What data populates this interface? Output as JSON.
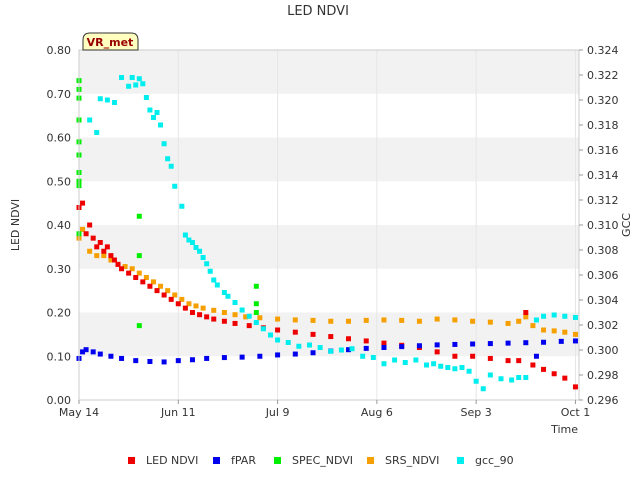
{
  "chart_data": {
    "type": "scatter",
    "title": "LED NDVI",
    "badge": "VR_met",
    "xlabel": "Time",
    "ylabel": "LED NDVI",
    "y2label": "GCC",
    "x_unit": "day of year 2023",
    "xlim": [
      134,
      275
    ],
    "ylim": [
      0,
      0.8
    ],
    "y2lim": [
      0.296,
      0.324
    ],
    "x_ticks": [
      {
        "label": "May 14",
        "day": 134
      },
      {
        "label": "Jun 11",
        "day": 162
      },
      {
        "label": "Jul 9",
        "day": 190
      },
      {
        "label": "Aug 6",
        "day": 218
      },
      {
        "label": "Sep 3",
        "day": 246
      },
      {
        "label": "Oct 1",
        "day": 274
      }
    ],
    "y_ticks": [
      "0.00",
      "0.10",
      "0.20",
      "0.30",
      "0.40",
      "0.50",
      "0.60",
      "0.70",
      "0.80"
    ],
    "y2_ticks": [
      "0.296",
      "0.298",
      "0.300",
      "0.302",
      "0.304",
      "0.306",
      "0.308",
      "0.310",
      "0.312",
      "0.314",
      "0.316",
      "0.318",
      "0.320",
      "0.322",
      "0.324"
    ],
    "series": [
      {
        "name": "LED NDVI",
        "color": "#ee0000",
        "axis": "left",
        "points": [
          [
            134,
            0.44
          ],
          [
            135,
            0.45
          ],
          [
            136,
            0.38
          ],
          [
            137,
            0.4
          ],
          [
            138,
            0.37
          ],
          [
            139,
            0.35
          ],
          [
            140,
            0.36
          ],
          [
            141,
            0.34
          ],
          [
            142,
            0.35
          ],
          [
            143,
            0.33
          ],
          [
            144,
            0.32
          ],
          [
            145,
            0.31
          ],
          [
            146,
            0.3
          ],
          [
            148,
            0.29
          ],
          [
            150,
            0.28
          ],
          [
            152,
            0.27
          ],
          [
            154,
            0.26
          ],
          [
            156,
            0.25
          ],
          [
            158,
            0.24
          ],
          [
            160,
            0.23
          ],
          [
            162,
            0.22
          ],
          [
            164,
            0.21
          ],
          [
            166,
            0.2
          ],
          [
            168,
            0.195
          ],
          [
            170,
            0.19
          ],
          [
            172,
            0.185
          ],
          [
            175,
            0.18
          ],
          [
            178,
            0.175
          ],
          [
            182,
            0.17
          ],
          [
            186,
            0.165
          ],
          [
            190,
            0.16
          ],
          [
            195,
            0.155
          ],
          [
            200,
            0.15
          ],
          [
            205,
            0.145
          ],
          [
            210,
            0.14
          ],
          [
            215,
            0.135
          ],
          [
            220,
            0.13
          ],
          [
            225,
            0.125
          ],
          [
            230,
            0.12
          ],
          [
            235,
            0.11
          ],
          [
            240,
            0.1
          ],
          [
            245,
            0.1
          ],
          [
            250,
            0.095
          ],
          [
            255,
            0.09
          ],
          [
            258,
            0.09
          ],
          [
            260,
            0.2
          ],
          [
            262,
            0.08
          ],
          [
            265,
            0.07
          ],
          [
            268,
            0.06
          ],
          [
            271,
            0.05
          ],
          [
            274,
            0.03
          ]
        ]
      },
      {
        "name": "fPAR",
        "color": "#0000ee",
        "axis": "left",
        "points": [
          [
            134,
            0.095
          ],
          [
            135,
            0.11
          ],
          [
            136,
            0.115
          ],
          [
            138,
            0.11
          ],
          [
            140,
            0.105
          ],
          [
            143,
            0.1
          ],
          [
            146,
            0.095
          ],
          [
            150,
            0.09
          ],
          [
            154,
            0.088
          ],
          [
            158,
            0.087
          ],
          [
            162,
            0.09
          ],
          [
            166,
            0.092
          ],
          [
            170,
            0.095
          ],
          [
            175,
            0.097
          ],
          [
            180,
            0.098
          ],
          [
            185,
            0.1
          ],
          [
            190,
            0.103
          ],
          [
            195,
            0.105
          ],
          [
            200,
            0.108
          ],
          [
            205,
            0.112
          ],
          [
            210,
            0.115
          ],
          [
            215,
            0.118
          ],
          [
            220,
            0.12
          ],
          [
            225,
            0.122
          ],
          [
            230,
            0.124
          ],
          [
            235,
            0.126
          ],
          [
            240,
            0.127
          ],
          [
            245,
            0.128
          ],
          [
            250,
            0.129
          ],
          [
            255,
            0.13
          ],
          [
            260,
            0.131
          ],
          [
            263,
            0.1
          ],
          [
            265,
            0.132
          ],
          [
            270,
            0.134
          ],
          [
            274,
            0.135
          ]
        ]
      },
      {
        "name": "SPEC_NDVI",
        "color": "#00ee00",
        "axis": "left",
        "points": [
          [
            134,
            0.73
          ],
          [
            134,
            0.71
          ],
          [
            134,
            0.69
          ],
          [
            134,
            0.64
          ],
          [
            134,
            0.59
          ],
          [
            134,
            0.56
          ],
          [
            134,
            0.52
          ],
          [
            134,
            0.5
          ],
          [
            134,
            0.49
          ],
          [
            134,
            0.38
          ],
          [
            151,
            0.42
          ],
          [
            151,
            0.33
          ],
          [
            151,
            0.17
          ],
          [
            184,
            0.26
          ],
          [
            184,
            0.22
          ],
          [
            184,
            0.2
          ]
        ]
      },
      {
        "name": "SRS_NDVI",
        "color": "#f5a000",
        "axis": "left",
        "points": [
          [
            134,
            0.37
          ],
          [
            135,
            0.39
          ],
          [
            137,
            0.34
          ],
          [
            139,
            0.33
          ],
          [
            141,
            0.33
          ],
          [
            143,
            0.32
          ],
          [
            145,
            0.31
          ],
          [
            147,
            0.305
          ],
          [
            149,
            0.3
          ],
          [
            151,
            0.29
          ],
          [
            153,
            0.28
          ],
          [
            155,
            0.27
          ],
          [
            157,
            0.26
          ],
          [
            159,
            0.25
          ],
          [
            161,
            0.24
          ],
          [
            163,
            0.23
          ],
          [
            165,
            0.22
          ],
          [
            167,
            0.215
          ],
          [
            169,
            0.21
          ],
          [
            172,
            0.205
          ],
          [
            175,
            0.2
          ],
          [
            178,
            0.195
          ],
          [
            181,
            0.19
          ],
          [
            185,
            0.188
          ],
          [
            190,
            0.185
          ],
          [
            195,
            0.183
          ],
          [
            200,
            0.182
          ],
          [
            205,
            0.18
          ],
          [
            210,
            0.18
          ],
          [
            215,
            0.182
          ],
          [
            220,
            0.183
          ],
          [
            225,
            0.182
          ],
          [
            230,
            0.18
          ],
          [
            235,
            0.185
          ],
          [
            240,
            0.183
          ],
          [
            245,
            0.18
          ],
          [
            250,
            0.178
          ],
          [
            255,
            0.175
          ],
          [
            258,
            0.18
          ],
          [
            260,
            0.19
          ],
          [
            262,
            0.17
          ],
          [
            265,
            0.16
          ],
          [
            268,
            0.158
          ],
          [
            271,
            0.155
          ],
          [
            274,
            0.15
          ]
        ]
      },
      {
        "name": "gcc_90",
        "color": "#00eeee",
        "axis": "right",
        "points": [
          [
            137,
            0.3184
          ],
          [
            139,
            0.3174
          ],
          [
            140,
            0.3201
          ],
          [
            142,
            0.32
          ],
          [
            144,
            0.3198
          ],
          [
            146,
            0.3218
          ],
          [
            148,
            0.3211
          ],
          [
            149,
            0.3218
          ],
          [
            150,
            0.3212
          ],
          [
            151,
            0.3217
          ],
          [
            152,
            0.3213
          ],
          [
            153,
            0.3202
          ],
          [
            154,
            0.3192
          ],
          [
            155,
            0.3186
          ],
          [
            156,
            0.319
          ],
          [
            157,
            0.318
          ],
          [
            158,
            0.3165
          ],
          [
            159,
            0.3153
          ],
          [
            160,
            0.3147
          ],
          [
            161,
            0.3131
          ],
          [
            163,
            0.3115
          ],
          [
            164,
            0.3092
          ],
          [
            165,
            0.3088
          ],
          [
            166,
            0.3086
          ],
          [
            167,
            0.3082
          ],
          [
            168,
            0.3079
          ],
          [
            169,
            0.3074
          ],
          [
            170,
            0.3069
          ],
          [
            171,
            0.3063
          ],
          [
            172,
            0.3056
          ],
          [
            173,
            0.3052
          ],
          [
            175,
            0.3046
          ],
          [
            176,
            0.3043
          ],
          [
            178,
            0.3038
          ],
          [
            180,
            0.3032
          ],
          [
            182,
            0.3027
          ],
          [
            184,
            0.3022
          ],
          [
            186,
            0.3017
          ],
          [
            188,
            0.3012
          ],
          [
            190,
            0.3008
          ],
          [
            193,
            0.3006
          ],
          [
            196,
            0.3003
          ],
          [
            199,
            0.3004
          ],
          [
            202,
            0.3002
          ],
          [
            205,
            0.2999
          ],
          [
            208,
            0.3
          ],
          [
            211,
            0.3001
          ],
          [
            214,
            0.2995
          ],
          [
            217,
            0.2994
          ],
          [
            220,
            0.2989
          ],
          [
            223,
            0.2992
          ],
          [
            226,
            0.299
          ],
          [
            229,
            0.2992
          ],
          [
            232,
            0.2988
          ],
          [
            234,
            0.2989
          ],
          [
            236,
            0.2987
          ],
          [
            238,
            0.2986
          ],
          [
            240,
            0.2985
          ],
          [
            242,
            0.2986
          ],
          [
            244,
            0.2983
          ],
          [
            246,
            0.2975
          ],
          [
            248,
            0.2969
          ],
          [
            250,
            0.298
          ],
          [
            253,
            0.2977
          ],
          [
            256,
            0.2976
          ],
          [
            258,
            0.2978
          ],
          [
            260,
            0.2978
          ],
          [
            263,
            0.3024
          ],
          [
            265,
            0.3027
          ],
          [
            268,
            0.3028
          ],
          [
            271,
            0.3027
          ],
          [
            274,
            0.3026
          ]
        ]
      }
    ]
  }
}
